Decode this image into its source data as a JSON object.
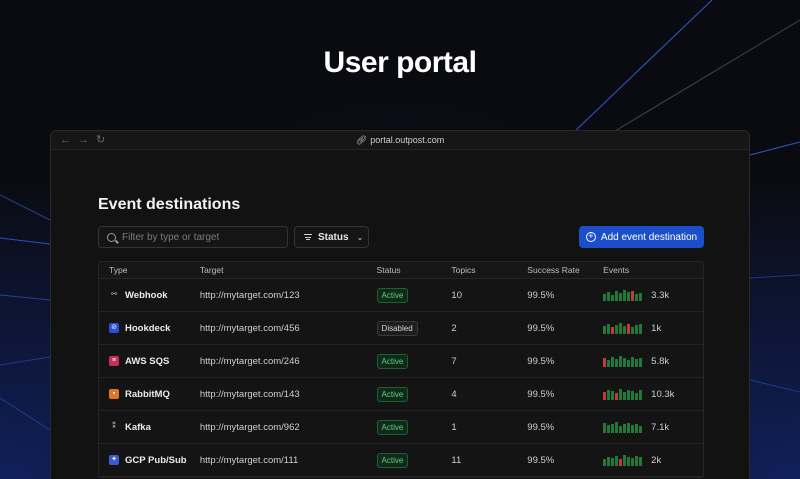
{
  "hero": {
    "title": "User portal"
  },
  "browser": {
    "url": "portal.outpost.com"
  },
  "page": {
    "title": "Event destinations",
    "search_placeholder": "Filter by type or target",
    "status_filter_label": "Status",
    "add_button_label": "Add event destination"
  },
  "table": {
    "headers": [
      "Type",
      "Target",
      "Status",
      "Topics",
      "Success Rate",
      "Events"
    ],
    "rows": [
      {
        "type": "Webhook",
        "icon": "webhook-icon",
        "target": "http://mytarget.com/123",
        "status": "Active",
        "topics": "10",
        "rate": "99.5%",
        "events": "3.3k",
        "bars": [
          0.6,
          0.8,
          0.5,
          0.9,
          0.7,
          1.0,
          0.8,
          0.9,
          0.6,
          0.7
        ],
        "err": [
          7
        ]
      },
      {
        "type": "Hookdeck",
        "icon": "hookdeck-icon",
        "target": "http://mytarget.com/456",
        "status": "Disabled",
        "topics": "2",
        "rate": "99.5%",
        "events": "1k",
        "bars": [
          0.7,
          0.9,
          0.6,
          0.8,
          1.0,
          0.7,
          0.9,
          0.6,
          0.8,
          0.9
        ],
        "err": [
          2,
          6
        ]
      },
      {
        "type": "AWS SQS",
        "icon": "aws-sqs-icon",
        "target": "http://mytarget.com/246",
        "status": "Active",
        "topics": "7",
        "rate": "99.5%",
        "events": "5.8k",
        "bars": [
          0.8,
          0.6,
          0.9,
          0.7,
          1.0,
          0.8,
          0.6,
          0.9,
          0.7,
          0.8
        ],
        "err": [
          0
        ]
      },
      {
        "type": "RabbitMQ",
        "icon": "rabbitmq-icon",
        "target": "http://mytarget.com/143",
        "status": "Active",
        "topics": "4",
        "rate": "99.5%",
        "events": "10.3k",
        "bars": [
          0.7,
          0.9,
          0.8,
          0.6,
          1.0,
          0.7,
          0.9,
          0.8,
          0.6,
          0.9
        ],
        "err": [
          0,
          3
        ]
      },
      {
        "type": "Kafka",
        "icon": "kafka-icon",
        "target": "http://mytarget.com/962",
        "status": "Active",
        "topics": "1",
        "rate": "99.5%",
        "events": "7.1k",
        "bars": [
          0.9,
          0.7,
          0.8,
          1.0,
          0.6,
          0.8,
          0.9,
          0.7,
          0.8,
          0.6
        ],
        "err": []
      },
      {
        "type": "GCP Pub/Sub",
        "icon": "gcp-pubsub-icon",
        "target": "http://mytarget.com/111",
        "status": "Active",
        "topics": "11",
        "rate": "99.5%",
        "events": "2k",
        "bars": [
          0.6,
          0.8,
          0.7,
          0.9,
          0.6,
          1.0,
          0.8,
          0.7,
          0.9,
          0.8
        ],
        "err": [
          4
        ]
      }
    ]
  },
  "colors": {
    "accent": "#1a4fc9",
    "active": "#5fd07f",
    "bar": "#1f7a3a",
    "bar_error": "#c43a3a"
  }
}
